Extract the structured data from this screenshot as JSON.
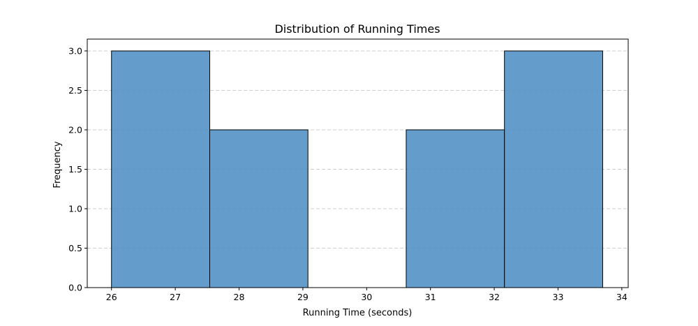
{
  "chart_data": {
    "type": "bar",
    "title": "Distribution of Running Times",
    "xlabel": "Running Time (seconds)",
    "ylabel": "Frequency",
    "bins": [
      {
        "start": 26.0,
        "end": 27.54,
        "count": 3
      },
      {
        "start": 27.54,
        "end": 29.08,
        "count": 2
      },
      {
        "start": 29.08,
        "end": 30.62,
        "count": 0
      },
      {
        "start": 30.62,
        "end": 32.16,
        "count": 2
      },
      {
        "start": 32.16,
        "end": 33.7,
        "count": 3
      }
    ],
    "xlim": [
      25.62,
      34.1
    ],
    "ylim": [
      0,
      3.15
    ],
    "xticks": [
      26,
      27,
      28,
      29,
      30,
      31,
      32,
      33,
      34
    ],
    "yticks": [
      0,
      0.5,
      1.0,
      1.5,
      2.0,
      2.5,
      3.0
    ],
    "ytick_labels": [
      "0.0",
      "0.5",
      "1.0",
      "1.5",
      "2.0",
      "2.5",
      "3.0"
    ],
    "grid": "y-dashed",
    "colors": {
      "bar_fill": "#4f8fc4",
      "bar_edge": "#000000",
      "grid": "#cfcfcf"
    }
  }
}
